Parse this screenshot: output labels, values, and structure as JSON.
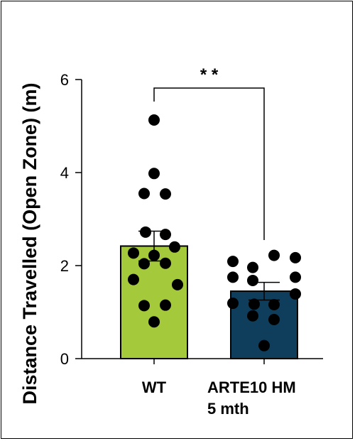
{
  "chart_data": {
    "type": "bar",
    "title": "",
    "xlabel": "",
    "ylabel": "Distance Travelled (Open Zone) (m)",
    "ylim": [
      0,
      6
    ],
    "yticks": [
      "0",
      "2",
      "4",
      "6"
    ],
    "grid": false,
    "legend": "none",
    "categories": [
      {
        "lines": [
          "WT"
        ]
      },
      {
        "lines": [
          "ARTE10 HM",
          "5 mth"
        ]
      }
    ],
    "series": [
      {
        "values": [
          2.42,
          1.45
        ],
        "error": [
          0.32,
          0.19
        ],
        "colors": [
          "#a4c93a",
          "#0e3e5c"
        ]
      }
    ],
    "points": [
      [
        5.13,
        3.98,
        3.55,
        3.54,
        2.72,
        2.67,
        2.27,
        2.22,
        2.4,
        2.04,
        2.05,
        1.7,
        1.59,
        1.14,
        1.15,
        0.79
      ],
      [
        2.22,
        2.17,
        2.09,
        1.96,
        1.75,
        1.75,
        1.68,
        1.39,
        1.19,
        1.17,
        1.16,
        0.92,
        0.84,
        0.28
      ]
    ],
    "significance": "* *"
  }
}
